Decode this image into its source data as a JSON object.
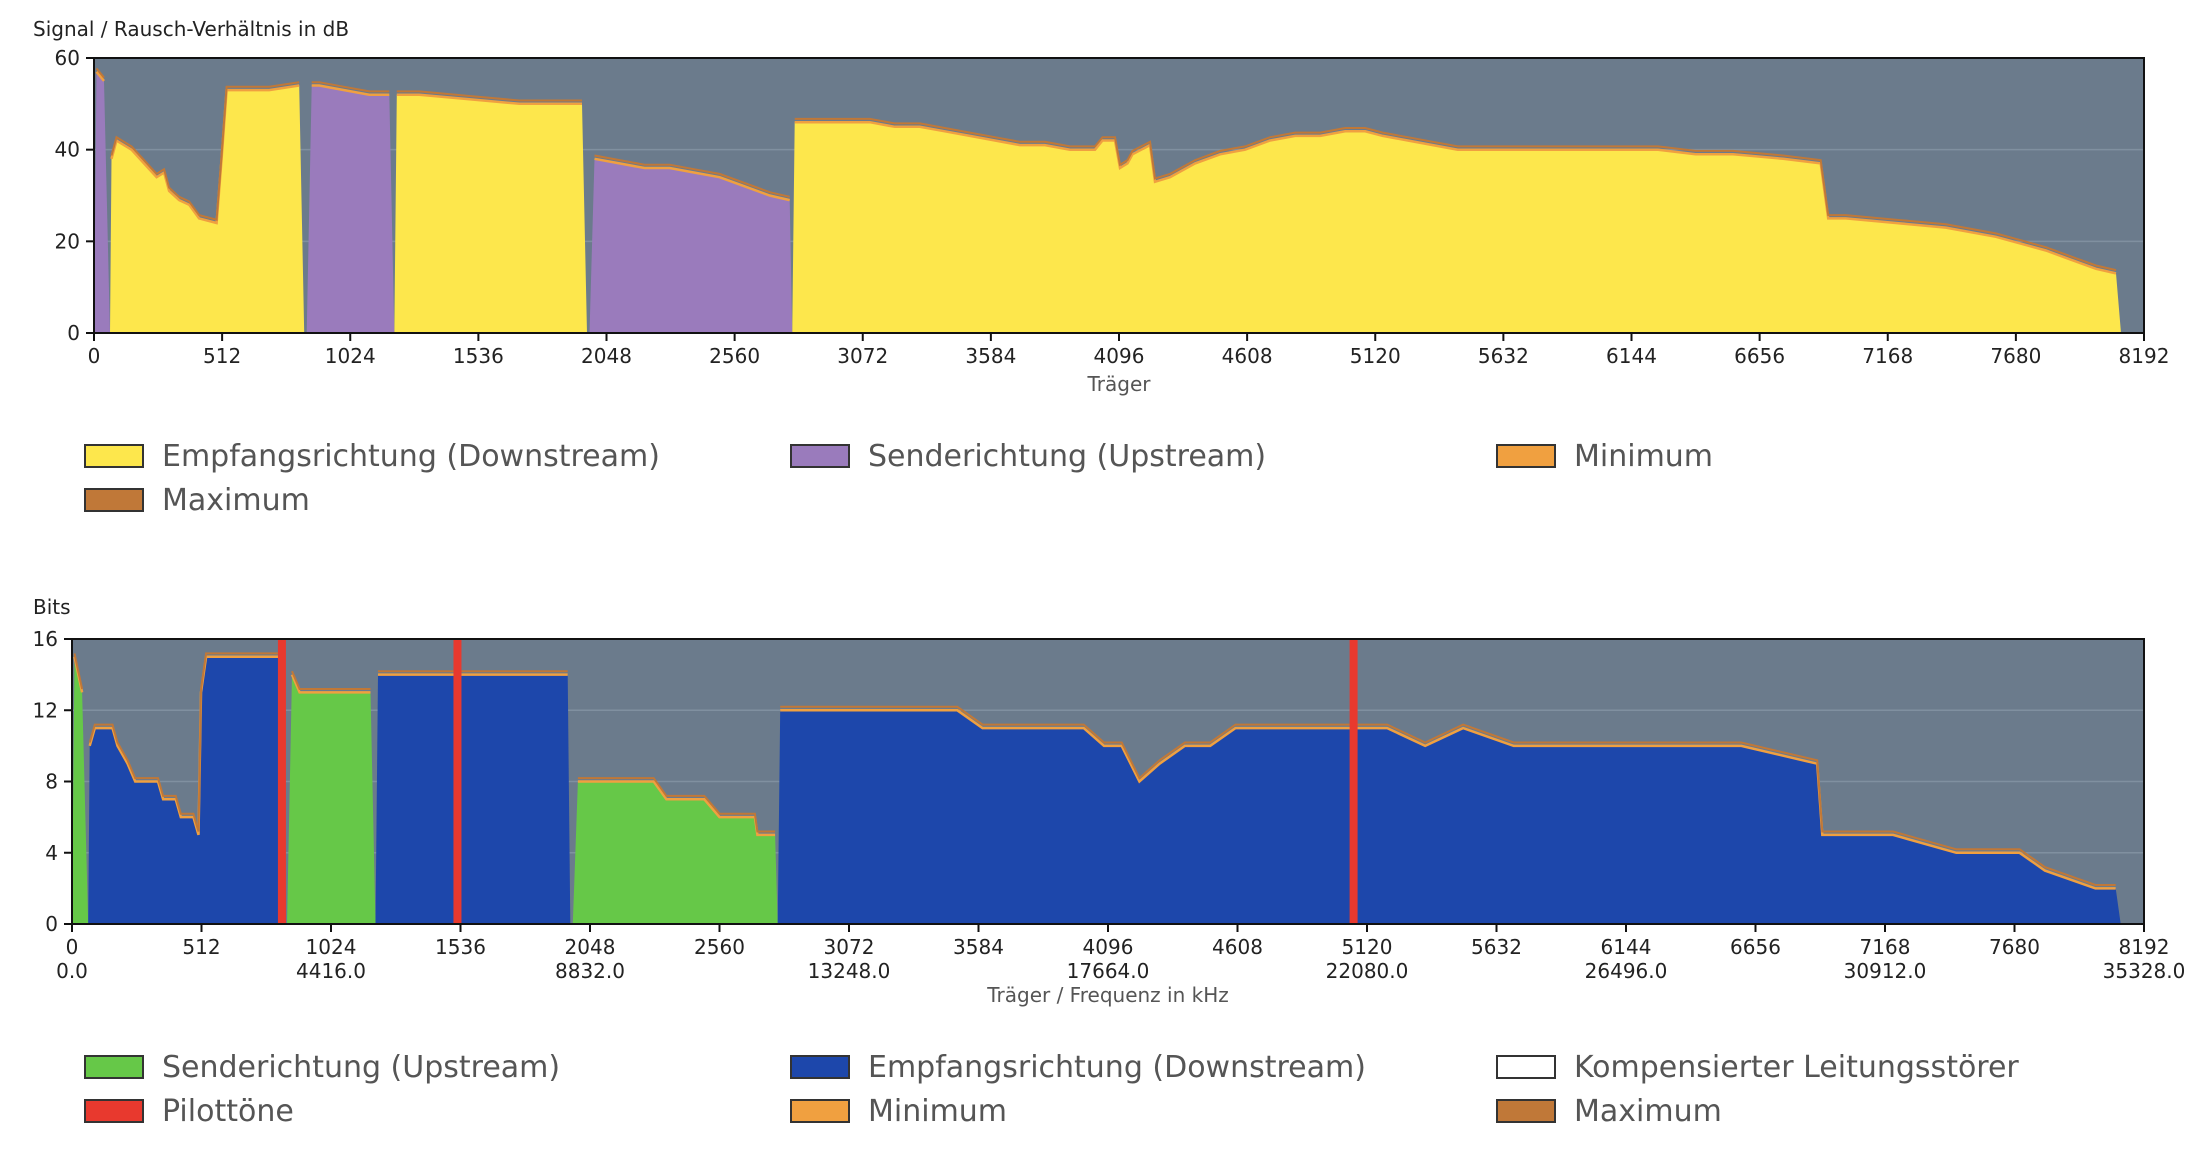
{
  "chart_data": [
    {
      "type": "area",
      "ylabel": "Signal / Rausch-Verhältnis in dB",
      "xlabel": "Träger",
      "xlim": [
        0,
        8192
      ],
      "ylim": [
        0,
        60
      ],
      "yticks": [
        0,
        20,
        40,
        60
      ],
      "xticks": [
        0,
        512,
        1024,
        1536,
        2048,
        2560,
        3072,
        3584,
        4096,
        4608,
        5120,
        5632,
        6144,
        6656,
        7168,
        7680,
        8192
      ],
      "background_color": "#6b7b8c",
      "series": [
        {
          "name": "Empfangsrichtung (Downstream)",
          "color": "#fde74c",
          "segments": [
            [
              [
                64,
                0
              ],
              [
                70,
                38
              ],
              [
                90,
                42
              ],
              [
                150,
                40
              ],
              [
                200,
                37
              ],
              [
                250,
                34
              ],
              [
                280,
                35
              ],
              [
                300,
                31
              ],
              [
                340,
                29
              ],
              [
                380,
                28
              ],
              [
                420,
                25
              ],
              [
                490,
                24
              ],
              [
                510,
                38
              ],
              [
                530,
                53
              ],
              [
                600,
                53
              ],
              [
                700,
                53
              ],
              [
                820,
                54
              ],
              [
                840,
                0
              ]
            ],
            [
              [
                1200,
                0
              ],
              [
                1210,
                52
              ],
              [
                1300,
                52
              ],
              [
                1500,
                51
              ],
              [
                1700,
                50
              ],
              [
                1900,
                50
              ],
              [
                1950,
                50
              ],
              [
                1970,
                0
              ]
            ],
            [
              [
                2790,
                0
              ],
              [
                2800,
                46
              ],
              [
                2900,
                46
              ],
              [
                3000,
                46
              ],
              [
                3100,
                46
              ],
              [
                3200,
                45
              ],
              [
                3300,
                45
              ],
              [
                3400,
                44
              ],
              [
                3500,
                43
              ],
              [
                3600,
                42
              ],
              [
                3700,
                41
              ],
              [
                3800,
                41
              ],
              [
                3900,
                40
              ],
              [
                4000,
                40
              ],
              [
                4030,
                42
              ],
              [
                4080,
                42
              ],
              [
                4100,
                36
              ],
              [
                4130,
                37
              ],
              [
                4150,
                39
              ],
              [
                4220,
                41
              ],
              [
                4240,
                33
              ],
              [
                4300,
                34
              ],
              [
                4400,
                37
              ],
              [
                4500,
                39
              ],
              [
                4600,
                40
              ],
              [
                4700,
                42
              ],
              [
                4800,
                43
              ],
              [
                4900,
                43
              ],
              [
                5000,
                44
              ],
              [
                5080,
                44
              ],
              [
                5150,
                43
              ],
              [
                5250,
                42
              ],
              [
                5350,
                41
              ],
              [
                5450,
                40
              ],
              [
                5550,
                40
              ],
              [
                5650,
                40
              ],
              [
                5800,
                40
              ],
              [
                5950,
                40
              ],
              [
                6100,
                40
              ],
              [
                6250,
                40
              ],
              [
                6400,
                39
              ],
              [
                6550,
                39
              ],
              [
                6750,
                38
              ],
              [
                6900,
                37
              ],
              [
                6930,
                25
              ],
              [
                7000,
                25
              ],
              [
                7200,
                24
              ],
              [
                7400,
                23
              ],
              [
                7600,
                21
              ],
              [
                7800,
                18
              ],
              [
                7900,
                16
              ],
              [
                8000,
                14
              ],
              [
                8080,
                13
              ],
              [
                8100,
                0
              ]
            ]
          ]
        },
        {
          "name": "Senderichtung (Upstream)",
          "color": "#9a7bbc",
          "segments": [
            [
              [
                0,
                0
              ],
              [
                10,
                57
              ],
              [
                40,
                55
              ],
              [
                64,
                0
              ]
            ],
            [
              [
                850,
                0
              ],
              [
                870,
                54
              ],
              [
                900,
                54
              ],
              [
                1000,
                53
              ],
              [
                1100,
                52
              ],
              [
                1180,
                52
              ],
              [
                1200,
                0
              ]
            ],
            [
              [
                1980,
                0
              ],
              [
                2000,
                38
              ],
              [
                2100,
                37
              ],
              [
                2200,
                36
              ],
              [
                2300,
                36
              ],
              [
                2400,
                35
              ],
              [
                2500,
                34
              ],
              [
                2600,
                32
              ],
              [
                2700,
                30
              ],
              [
                2780,
                29
              ],
              [
                2790,
                0
              ]
            ]
          ]
        },
        {
          "name": "Minimum",
          "color": "#f0a040"
        },
        {
          "name": "Maximum",
          "color": "#c07838"
        }
      ]
    },
    {
      "type": "area",
      "ylabel": "Bits",
      "xlabel": "Träger / Frequenz in kHz",
      "xlim": [
        0,
        8192
      ],
      "ylim": [
        0,
        16
      ],
      "yticks": [
        0,
        4,
        8,
        12,
        16
      ],
      "xticks": [
        0,
        512,
        1024,
        1536,
        2048,
        2560,
        3072,
        3584,
        4096,
        4608,
        5120,
        5632,
        6144,
        6656,
        7168,
        7680,
        8192
      ],
      "xticks_freq": [
        "0.0",
        "4416.0",
        "8832.0",
        "13248.0",
        "17664.0",
        "22080.0",
        "26496.0",
        "30912.0",
        "35328.0"
      ],
      "background_color": "#6b7b8c",
      "pilot_tones": [
        830,
        1524,
        5067
      ],
      "series": [
        {
          "name": "Senderichtung (Upstream)",
          "color": "#66c848",
          "segments": [
            [
              [
                0,
                0
              ],
              [
                10,
                15
              ],
              [
                40,
                13
              ],
              [
                64,
                0
              ]
            ],
            [
              [
                850,
                0
              ],
              [
                870,
                14
              ],
              [
                900,
                13
              ],
              [
                1000,
                13
              ],
              [
                1100,
                13
              ],
              [
                1180,
                13
              ],
              [
                1200,
                0
              ]
            ],
            [
              [
                1980,
                0
              ],
              [
                2000,
                8
              ],
              [
                2100,
                8
              ],
              [
                2300,
                8
              ],
              [
                2350,
                7
              ],
              [
                2500,
                7
              ],
              [
                2560,
                6
              ],
              [
                2700,
                6
              ],
              [
                2710,
                5
              ],
              [
                2780,
                5
              ],
              [
                2790,
                0
              ]
            ]
          ]
        },
        {
          "name": "Empfangsrichtung (Downstream)",
          "color": "#1d47ab",
          "segments": [
            [
              [
                64,
                0
              ],
              [
                70,
                10
              ],
              [
                90,
                11
              ],
              [
                160,
                11
              ],
              [
                180,
                10
              ],
              [
                220,
                9
              ],
              [
                250,
                8
              ],
              [
                340,
                8
              ],
              [
                360,
                7
              ],
              [
                410,
                7
              ],
              [
                430,
                6
              ],
              [
                480,
                6
              ],
              [
                500,
                5
              ],
              [
                510,
                13
              ],
              [
                530,
                15
              ],
              [
                700,
                15
              ],
              [
                840,
                15
              ],
              [
                845,
                0
              ]
            ],
            [
              [
                1200,
                0
              ],
              [
                1210,
                14
              ],
              [
                1300,
                14
              ],
              [
                1500,
                14
              ],
              [
                1700,
                14
              ],
              [
                1900,
                14
              ],
              [
                1960,
                14
              ],
              [
                1970,
                0
              ]
            ],
            [
              [
                2790,
                0
              ],
              [
                2800,
                12
              ],
              [
                2900,
                12
              ],
              [
                3000,
                12
              ],
              [
                3300,
                12
              ],
              [
                3500,
                12
              ],
              [
                3600,
                11
              ],
              [
                4000,
                11
              ],
              [
                4080,
                10
              ],
              [
                4150,
                10
              ],
              [
                4220,
                8
              ],
              [
                4300,
                9
              ],
              [
                4400,
                10
              ],
              [
                4500,
                10
              ],
              [
                4600,
                11
              ],
              [
                4900,
                11
              ],
              [
                5080,
                11
              ],
              [
                5200,
                11
              ],
              [
                5350,
                10
              ],
              [
                5500,
                11
              ],
              [
                5700,
                10
              ],
              [
                6000,
                10
              ],
              [
                6300,
                10
              ],
              [
                6600,
                10
              ],
              [
                6900,
                9
              ],
              [
                6920,
                5
              ],
              [
                7000,
                5
              ],
              [
                7200,
                5
              ],
              [
                7450,
                4
              ],
              [
                7700,
                4
              ],
              [
                7800,
                3
              ],
              [
                8000,
                2
              ],
              [
                8080,
                2
              ],
              [
                8100,
                0
              ]
            ]
          ]
        },
        {
          "name": "Kompensierter Leitungsstörer",
          "color": "#ffffff"
        },
        {
          "name": "Pilottöne",
          "color": "#e8392e"
        },
        {
          "name": "Minimum",
          "color": "#f0a040"
        },
        {
          "name": "Maximum",
          "color": "#c07838"
        }
      ]
    }
  ]
}
